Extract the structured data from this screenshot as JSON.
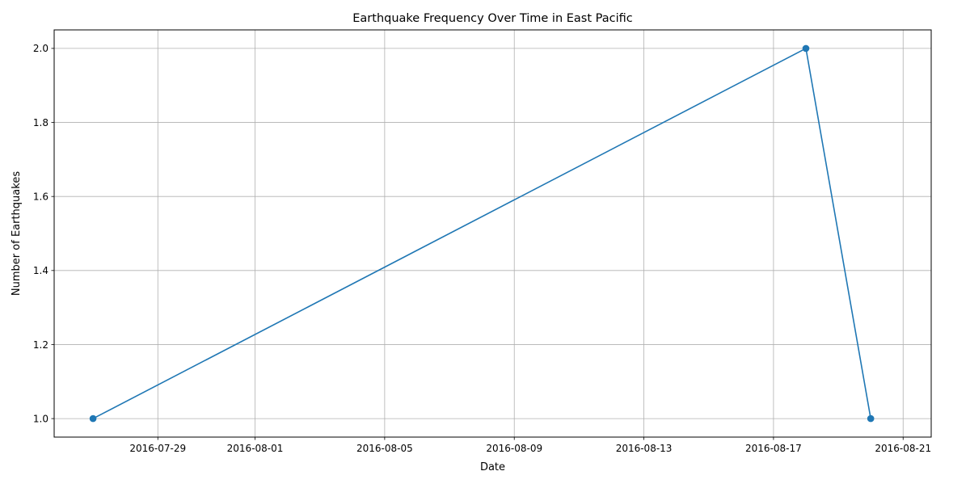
{
  "chart_data": {
    "type": "line",
    "title": "Earthquake Frequency Over Time in East Pacific",
    "xlabel": "Date",
    "ylabel": "Number of Earthquakes",
    "x_is_date": true,
    "x": [
      "2016-07-27",
      "2016-08-18",
      "2016-08-20"
    ],
    "series": [
      {
        "values": [
          1,
          2,
          1
        ],
        "color": "#1f77b4",
        "marker": "circle"
      }
    ],
    "xlim": [
      "2016-07-25 19:12",
      "2016-08-21 20:48"
    ],
    "ylim": [
      0.95,
      2.05
    ],
    "x_ticks": [
      "2016-07-29",
      "2016-08-01",
      "2016-08-05",
      "2016-08-09",
      "2016-08-13",
      "2016-08-17",
      "2016-08-21"
    ],
    "y_ticks": [
      "1.0",
      "1.2",
      "1.4",
      "1.6",
      "1.8",
      "2.0"
    ],
    "grid": true,
    "legend": null
  }
}
